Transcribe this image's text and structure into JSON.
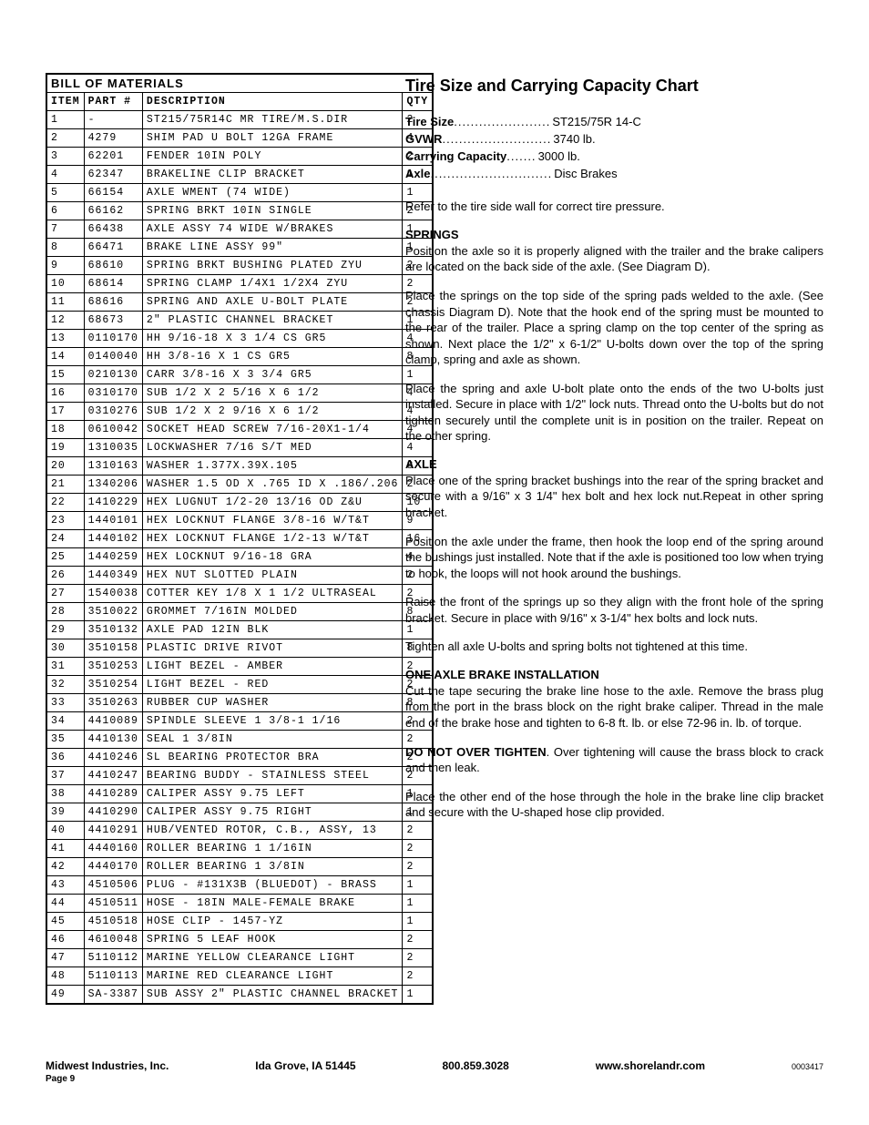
{
  "bom": {
    "title": "BILL OF MATERIALS",
    "headers": {
      "item": "ITEM",
      "part": "PART #",
      "desc": "DESCRIPTION",
      "qty": "QTY"
    },
    "rows": [
      [
        "1",
        "-",
        "ST215/75R14C MR TIRE/M.S.DIR",
        "2"
      ],
      [
        "2",
        "4279",
        "SHIM PAD  U BOLT 12GA FRAME",
        "4"
      ],
      [
        "3",
        "62201",
        "FENDER  10IN POLY",
        "2"
      ],
      [
        "4",
        "62347",
        "BRAKELINE CLIP BRACKET",
        "1"
      ],
      [
        "5",
        "66154",
        "AXLE WMENT (74 WIDE)",
        "1"
      ],
      [
        "6",
        "66162",
        "SPRING BRKT  10IN SINGLE",
        "2"
      ],
      [
        "7",
        "66438",
        "AXLE ASSY 74 WIDE W/BRAKES",
        "1"
      ],
      [
        "8",
        "66471",
        "BRAKE LINE ASSY 99\"",
        "1"
      ],
      [
        "9",
        "68610",
        "SPRING BRKT BUSHING PLATED ZYU",
        "2"
      ],
      [
        "10",
        "68614",
        "SPRING CLAMP  1/4X1 1/2X4  ZYU",
        "2"
      ],
      [
        "11",
        "68616",
        "SPRING AND AXLE U-BOLT PLATE",
        "2"
      ],
      [
        "12",
        "68673",
        "2\" PLASTIC CHANNEL BRACKET",
        "1"
      ],
      [
        "13",
        "0110170",
        "HH 9/16-18 X 3 1/4 CS GR5",
        "4"
      ],
      [
        "14",
        "0140040",
        "HH 3/8-16 X 1 CS GR5",
        "8"
      ],
      [
        "15",
        "0210130",
        "CARR 3/8-16 X 3 3/4 GR5",
        "1"
      ],
      [
        "16",
        "0310170",
        "SUB 1/2 X 2 5/16 X 6 1/2",
        "4"
      ],
      [
        "17",
        "0310276",
        "SUB 1/2 X 2 9/16 X 6 1/2",
        "4"
      ],
      [
        "18",
        "0610042",
        "SOCKET HEAD SCREW 7/16-20X1-1/4",
        "4"
      ],
      [
        "19",
        "1310035",
        "LOCKWASHER 7/16 S/T MED",
        "4"
      ],
      [
        "20",
        "1310163",
        "WASHER 1.377X.39X.105",
        "8"
      ],
      [
        "21",
        "1340206",
        "WASHER 1.5 OD X .765 ID X .186/.206",
        "2"
      ],
      [
        "22",
        "1410229",
        "HEX LUGNUT 1/2-20 13/16 OD Z&U",
        "10"
      ],
      [
        "23",
        "1440101",
        "HEX LOCKNUT FLANGE 3/8-16 W/T&T",
        "9"
      ],
      [
        "24",
        "1440102",
        "HEX LOCKNUT FLANGE 1/2-13 W/T&T",
        "16"
      ],
      [
        "25",
        "1440259",
        "HEX LOCKNUT 9/16-18 GRA",
        "4"
      ],
      [
        "26",
        "1440349",
        "HEX NUT SLOTTED PLAIN",
        "2"
      ],
      [
        "27",
        "1540038",
        "COTTER KEY 1/8 X 1 1/2 ULTRASEAL",
        "2"
      ],
      [
        "28",
        "3510022",
        "GROMMET  7/16IN MOLDED",
        "8"
      ],
      [
        "29",
        "3510132",
        "AXLE PAD 12IN  BLK",
        "1"
      ],
      [
        "30",
        "3510158",
        "PLASTIC DRIVE RIVOT",
        "8"
      ],
      [
        "31",
        "3510253",
        "LIGHT BEZEL - AMBER",
        "2"
      ],
      [
        "32",
        "3510254",
        "LIGHT BEZEL - RED",
        "2"
      ],
      [
        "33",
        "3510263",
        "RUBBER CUP WASHER",
        "8"
      ],
      [
        "34",
        "4410089",
        "SPINDLE SLEEVE  1 3/8-1 1/16",
        "2"
      ],
      [
        "35",
        "4410130",
        "SEAL  1 3/8IN",
        "2"
      ],
      [
        "36",
        "4410246",
        "SL BEARING PROTECTOR BRA",
        "2"
      ],
      [
        "37",
        "4410247",
        "BEARING BUDDY - STAINLESS STEEL",
        "2"
      ],
      [
        "38",
        "4410289",
        "CALIPER ASSY 9.75 LEFT",
        "1"
      ],
      [
        "39",
        "4410290",
        "CALIPER ASSY 9.75 RIGHT",
        "1"
      ],
      [
        "40",
        "4410291",
        "HUB/VENTED ROTOR, C.B., ASSY, 13",
        "2"
      ],
      [
        "41",
        "4440160",
        "ROLLER BEARING  1 1/16IN",
        "2"
      ],
      [
        "42",
        "4440170",
        "ROLLER BEARING  1 3/8IN",
        "2"
      ],
      [
        "43",
        "4510506",
        "PLUG - #131X3B (BLUEDOT) - BRASS",
        "1"
      ],
      [
        "44",
        "4510511",
        "HOSE - 18IN MALE-FEMALE BRAKE",
        "1"
      ],
      [
        "45",
        "4510518",
        "HOSE CLIP - 1457-YZ",
        "1"
      ],
      [
        "46",
        "4610048",
        "SPRING  5 LEAF HOOK",
        "2"
      ],
      [
        "47",
        "5110112",
        "MARINE YELLOW CLEARANCE LIGHT",
        "2"
      ],
      [
        "48",
        "5110113",
        "MARINE RED CLEARANCE LIGHT",
        "2"
      ],
      [
        "49",
        "SA-3387",
        "SUB ASSY 2\" PLASTIC CHANNEL BRACKET",
        "1"
      ]
    ]
  },
  "right": {
    "title": "Tire Size and Carrying Capacity Chart",
    "specs": [
      {
        "label": "Tire Size",
        "dots": ".......................",
        "value": "ST215/75R 14-C"
      },
      {
        "label": "GVWR ",
        "dots": "..........................",
        "value": "3740 lb."
      },
      {
        "label": "Carrying Capacity",
        "dots": ".......",
        "value": "3000 lb."
      },
      {
        "label": "Axle",
        "dots": ".............................",
        "value": "Disc Brakes"
      }
    ],
    "p_refer": "Refer to the tire side wall for correct tire pressure.",
    "h_springs": "SPRINGS",
    "p_springs_1": "Position the axle so it is properly aligned with the trailer and the brake calipers are located on the back side of the axle. (See Diagram D).",
    "p_springs_2": "Place the springs on the top side of the spring pads welded to the axle. (See chassis Diagram D). Note that the hook end of the spring must be mounted to the rear of the trailer. Place a spring clamp on the top center of the spring as shown. Next place the 1/2\" x 6-1/2\" U-bolts down over the top of the spring clamp, spring and axle as shown.",
    "p_springs_3": "Place the spring and axle U-bolt plate onto the ends of the two U-bolts just installed. Secure in place with 1/2\" lock nuts. Thread onto the U-bolts but do not tighten securely until the complete unit is in position on the trailer. Repeat on the other spring.",
    "h_axle": "AXLE",
    "p_axle_1": "Place one of the spring bracket bushings into the rear of the spring bracket and secure with a 9/16\" x 3 1/4\" hex bolt and hex lock nut.Repeat in other spring bracket.",
    "p_axle_2": "Position the axle under the frame, then hook the loop end of the spring around the bushings just installed. Note that if the axle is positioned too low when trying to hook, the loops will not hook around the bushings.",
    "p_axle_3": "Raise the front of the springs up so they align with the front hole of the spring bracket. Secure in place with 9/16\" x 3-1/4\" hex bolts and lock nuts.",
    "p_axle_4": "Tighten all axle U-bolts and spring bolts not tightened at this time.",
    "h_brake": "ONE AXLE BRAKE INSTALLATION",
    "p_brake_1": "Cut the tape securing the brake line hose to the axle. Remove the brass plug from the port in the brass block on the right brake caliper. Thread in the male end of the brake hose and tighten to 6-8 ft. lb. or else 72-96 in. lb. of torque.",
    "p_brake_2a": "DO NOT OVER TIGHTEN",
    "p_brake_2b": ". Over tightening will cause the brass block to crack and then leak.",
    "p_brake_3": "Place the other end of the hose through the hole in the brake line clip bracket and secure with the U-shaped hose clip provided."
  },
  "footer": {
    "company": "Midwest Industries, Inc.",
    "city": "Ida Grove, IA  51445",
    "phone": "800.859.3028",
    "url": "www.shorelandr.com",
    "docnum": "0003417",
    "page": "Page 9"
  }
}
